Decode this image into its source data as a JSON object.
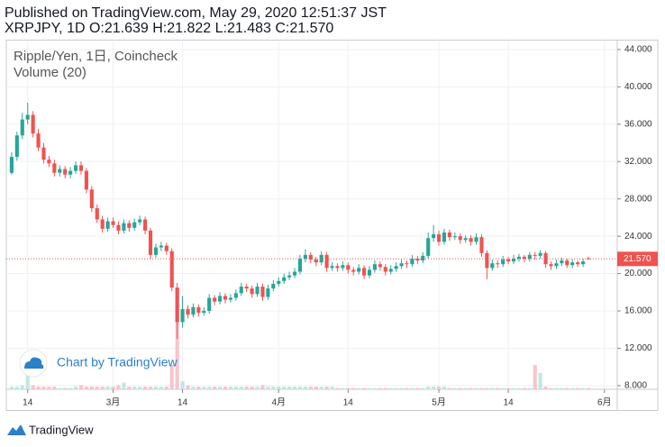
{
  "header": {
    "published": "Published on TradingView.com, May 29, 2020 12:51:37 JST",
    "ohlc_line": "XRPJPY, 1D O:21.639 H:21.822 L:21.483 C:21.570"
  },
  "chart_data": {
    "type": "candlestick",
    "legend": [
      "Ripple/Yen, 1日, Coincheck",
      "Volume (20)"
    ],
    "up_color": "#26a69a",
    "down_color": "#ef5350",
    "up_volume_color": "#bfe9e1",
    "down_volume_color": "#f8c4cb",
    "xlim": [
      -1,
      113.4
    ],
    "xticks": [
      {
        "value": 3,
        "label": "14"
      },
      {
        "value": 19,
        "label": "3月"
      },
      {
        "value": 32,
        "label": "14"
      },
      {
        "value": 50,
        "label": "4月"
      },
      {
        "value": 63,
        "label": "14"
      },
      {
        "value": 80,
        "label": "5月"
      },
      {
        "value": 93,
        "label": "14"
      },
      {
        "value": 111,
        "label": "6月"
      }
    ],
    "ylim": [
      7.6,
      45
    ],
    "yticks": [
      {
        "value": 8,
        "label": "8.000"
      },
      {
        "value": 12,
        "label": "12.000"
      },
      {
        "value": 16,
        "label": "16.000"
      },
      {
        "value": 20,
        "label": "20.000"
      },
      {
        "value": 24,
        "label": "24.000"
      },
      {
        "value": 28,
        "label": "28.000"
      },
      {
        "value": 32,
        "label": "32.000"
      },
      {
        "value": 36,
        "label": "36.000"
      },
      {
        "value": 40,
        "label": "40.000"
      },
      {
        "value": 44,
        "label": "44.000"
      }
    ],
    "grid": true,
    "last_price": {
      "value": 21.57,
      "label": "21.570"
    },
    "vlim": [
      0,
      100
    ],
    "ohlc": [
      [
        30.8,
        33.0,
        30.6,
        32.5
      ],
      [
        32.5,
        35.2,
        32.1,
        34.8
      ],
      [
        34.8,
        37.2,
        34.4,
        36.5
      ],
      [
        36.5,
        38.3,
        36.0,
        37.0
      ],
      [
        37.0,
        37.4,
        34.6,
        35.0
      ],
      [
        35.0,
        35.5,
        33.1,
        33.5
      ],
      [
        33.5,
        34.0,
        31.8,
        32.2
      ],
      [
        32.2,
        32.6,
        31.4,
        31.8
      ],
      [
        31.8,
        32.2,
        30.4,
        30.8
      ],
      [
        30.8,
        31.6,
        30.4,
        31.2
      ],
      [
        31.2,
        31.5,
        30.2,
        30.6
      ],
      [
        30.6,
        31.4,
        30.2,
        31.0
      ],
      [
        31.0,
        32.0,
        30.7,
        31.6
      ],
      [
        31.6,
        32.0,
        30.6,
        31.0
      ],
      [
        31.0,
        31.3,
        28.6,
        29.0
      ],
      [
        29.0,
        29.4,
        26.6,
        27.0
      ],
      [
        27.0,
        27.4,
        25.4,
        25.8
      ],
      [
        25.8,
        26.2,
        24.4,
        24.8
      ],
      [
        24.8,
        26.0,
        24.5,
        25.6
      ],
      [
        25.6,
        26.0,
        24.9,
        25.2
      ],
      [
        25.2,
        25.6,
        24.2,
        24.6
      ],
      [
        24.6,
        25.8,
        24.3,
        25.4
      ],
      [
        25.4,
        25.7,
        24.5,
        24.9
      ],
      [
        24.9,
        25.9,
        24.6,
        25.5
      ],
      [
        25.5,
        26.2,
        25.2,
        25.8
      ],
      [
        25.8,
        26.1,
        24.2,
        24.6
      ],
      [
        24.6,
        24.9,
        21.6,
        22.0
      ],
      [
        22.0,
        23.2,
        21.7,
        22.8
      ],
      [
        22.8,
        23.4,
        22.4,
        23.0
      ],
      [
        23.0,
        23.3,
        22.0,
        22.4
      ],
      [
        22.4,
        22.7,
        18.1,
        18.5
      ],
      [
        18.5,
        19.0,
        13.0,
        14.8
      ],
      [
        14.8,
        17.6,
        14.2,
        16.2
      ],
      [
        16.2,
        16.6,
        15.2,
        15.6
      ],
      [
        15.6,
        16.8,
        15.3,
        16.4
      ],
      [
        16.4,
        16.7,
        15.4,
        15.8
      ],
      [
        15.8,
        16.4,
        15.5,
        16.0
      ],
      [
        16.0,
        17.8,
        15.7,
        17.4
      ],
      [
        17.4,
        17.7,
        16.6,
        17.0
      ],
      [
        17.0,
        18.0,
        16.7,
        17.6
      ],
      [
        17.6,
        17.9,
        16.8,
        17.2
      ],
      [
        17.2,
        17.8,
        16.9,
        17.4
      ],
      [
        17.4,
        18.3,
        17.1,
        17.9
      ],
      [
        17.9,
        19.0,
        17.6,
        18.6
      ],
      [
        18.6,
        18.9,
        18.0,
        18.4
      ],
      [
        18.4,
        18.7,
        17.4,
        17.8
      ],
      [
        17.8,
        19.0,
        17.5,
        18.6
      ],
      [
        18.6,
        18.9,
        17.1,
        17.5
      ],
      [
        17.5,
        18.8,
        17.2,
        18.4
      ],
      [
        18.4,
        19.3,
        18.1,
        18.9
      ],
      [
        18.9,
        19.6,
        18.6,
        19.2
      ],
      [
        19.2,
        20.0,
        18.9,
        19.6
      ],
      [
        19.6,
        20.2,
        19.3,
        19.8
      ],
      [
        19.8,
        20.6,
        19.5,
        20.2
      ],
      [
        20.2,
        22.0,
        19.9,
        21.6
      ],
      [
        21.6,
        22.6,
        21.2,
        22.0
      ],
      [
        22.0,
        22.3,
        21.1,
        21.5
      ],
      [
        21.5,
        21.8,
        20.8,
        21.2
      ],
      [
        21.2,
        22.4,
        20.9,
        22.0
      ],
      [
        22.0,
        22.3,
        20.2,
        20.6
      ],
      [
        20.6,
        21.2,
        20.3,
        20.8
      ],
      [
        20.8,
        21.1,
        20.2,
        20.6
      ],
      [
        20.6,
        21.3,
        20.3,
        20.9
      ],
      [
        20.9,
        21.2,
        20.0,
        20.4
      ],
      [
        20.4,
        20.7,
        19.8,
        20.2
      ],
      [
        20.2,
        21.0,
        19.9,
        20.6
      ],
      [
        20.6,
        20.9,
        19.4,
        19.8
      ],
      [
        19.8,
        20.8,
        19.5,
        20.4
      ],
      [
        20.4,
        21.4,
        20.1,
        21.0
      ],
      [
        21.0,
        21.3,
        20.3,
        20.7
      ],
      [
        20.7,
        21.0,
        19.8,
        20.2
      ],
      [
        20.2,
        20.9,
        19.9,
        20.5
      ],
      [
        20.5,
        21.2,
        20.2,
        20.8
      ],
      [
        20.8,
        21.5,
        20.5,
        21.1
      ],
      [
        21.1,
        21.4,
        20.6,
        21.0
      ],
      [
        21.0,
        22.0,
        20.7,
        21.6
      ],
      [
        21.6,
        21.9,
        21.0,
        21.4
      ],
      [
        21.4,
        22.3,
        21.1,
        21.9
      ],
      [
        21.9,
        24.4,
        21.6,
        23.8
      ],
      [
        23.8,
        25.2,
        23.4,
        24.2
      ],
      [
        24.2,
        24.6,
        23.0,
        23.4
      ],
      [
        23.4,
        24.8,
        23.1,
        24.4
      ],
      [
        24.4,
        24.7,
        23.5,
        23.9
      ],
      [
        23.9,
        24.4,
        23.6,
        24.0
      ],
      [
        24.0,
        24.3,
        23.2,
        23.6
      ],
      [
        23.6,
        24.1,
        23.3,
        23.8
      ],
      [
        23.8,
        24.1,
        23.0,
        23.4
      ],
      [
        23.4,
        24.3,
        23.1,
        23.9
      ],
      [
        23.9,
        24.2,
        21.8,
        22.2
      ],
      [
        22.2,
        22.5,
        19.4,
        20.6
      ],
      [
        20.6,
        21.5,
        20.3,
        21.1
      ],
      [
        21.1,
        21.4,
        20.6,
        21.0
      ],
      [
        21.0,
        21.9,
        20.7,
        21.5
      ],
      [
        21.5,
        21.8,
        21.0,
        21.3
      ],
      [
        21.3,
        22.0,
        21.0,
        21.6
      ],
      [
        21.6,
        22.1,
        21.3,
        21.8
      ],
      [
        21.8,
        22.0,
        21.2,
        21.6
      ],
      [
        21.6,
        22.3,
        21.3,
        22.0
      ],
      [
        22.0,
        22.3,
        21.5,
        21.9
      ],
      [
        21.9,
        22.5,
        21.6,
        22.2
      ],
      [
        22.2,
        22.4,
        20.6,
        21.0
      ],
      [
        21.0,
        21.3,
        20.4,
        20.8
      ],
      [
        20.8,
        21.5,
        20.5,
        21.1
      ],
      [
        21.1,
        21.7,
        20.8,
        21.4
      ],
      [
        21.4,
        21.6,
        20.6,
        20.9
      ],
      [
        20.9,
        21.5,
        20.6,
        21.2
      ],
      [
        21.2,
        21.4,
        20.7,
        21.0
      ],
      [
        21.0,
        21.6,
        20.7,
        21.3
      ],
      [
        21.639,
        21.822,
        21.483,
        21.57
      ]
    ],
    "volume": [
      2,
      2,
      3,
      22,
      3,
      2,
      2,
      2,
      2,
      1,
      1,
      1,
      2,
      3,
      2,
      2,
      2,
      2,
      2,
      2,
      3,
      5,
      2,
      2,
      2,
      2,
      2,
      2,
      2,
      2,
      18,
      58,
      6,
      3,
      2,
      2,
      2,
      2,
      2,
      2,
      2,
      2,
      2,
      2,
      2,
      2,
      2,
      3,
      2,
      2,
      2,
      2,
      2,
      2,
      2,
      2,
      2,
      2,
      2,
      2,
      2,
      1,
      1,
      1,
      1,
      1,
      1,
      1,
      1,
      1,
      1,
      1,
      1,
      1,
      1,
      1,
      1,
      1,
      2,
      2,
      2,
      2,
      1,
      1,
      1,
      1,
      1,
      1,
      1,
      1,
      1,
      1,
      1,
      1,
      1,
      1,
      1,
      1,
      18,
      12,
      2,
      1,
      1,
      1,
      1,
      1,
      1,
      1,
      1
    ]
  },
  "watermark": "Chart by TradingView",
  "footer": "TradingView"
}
